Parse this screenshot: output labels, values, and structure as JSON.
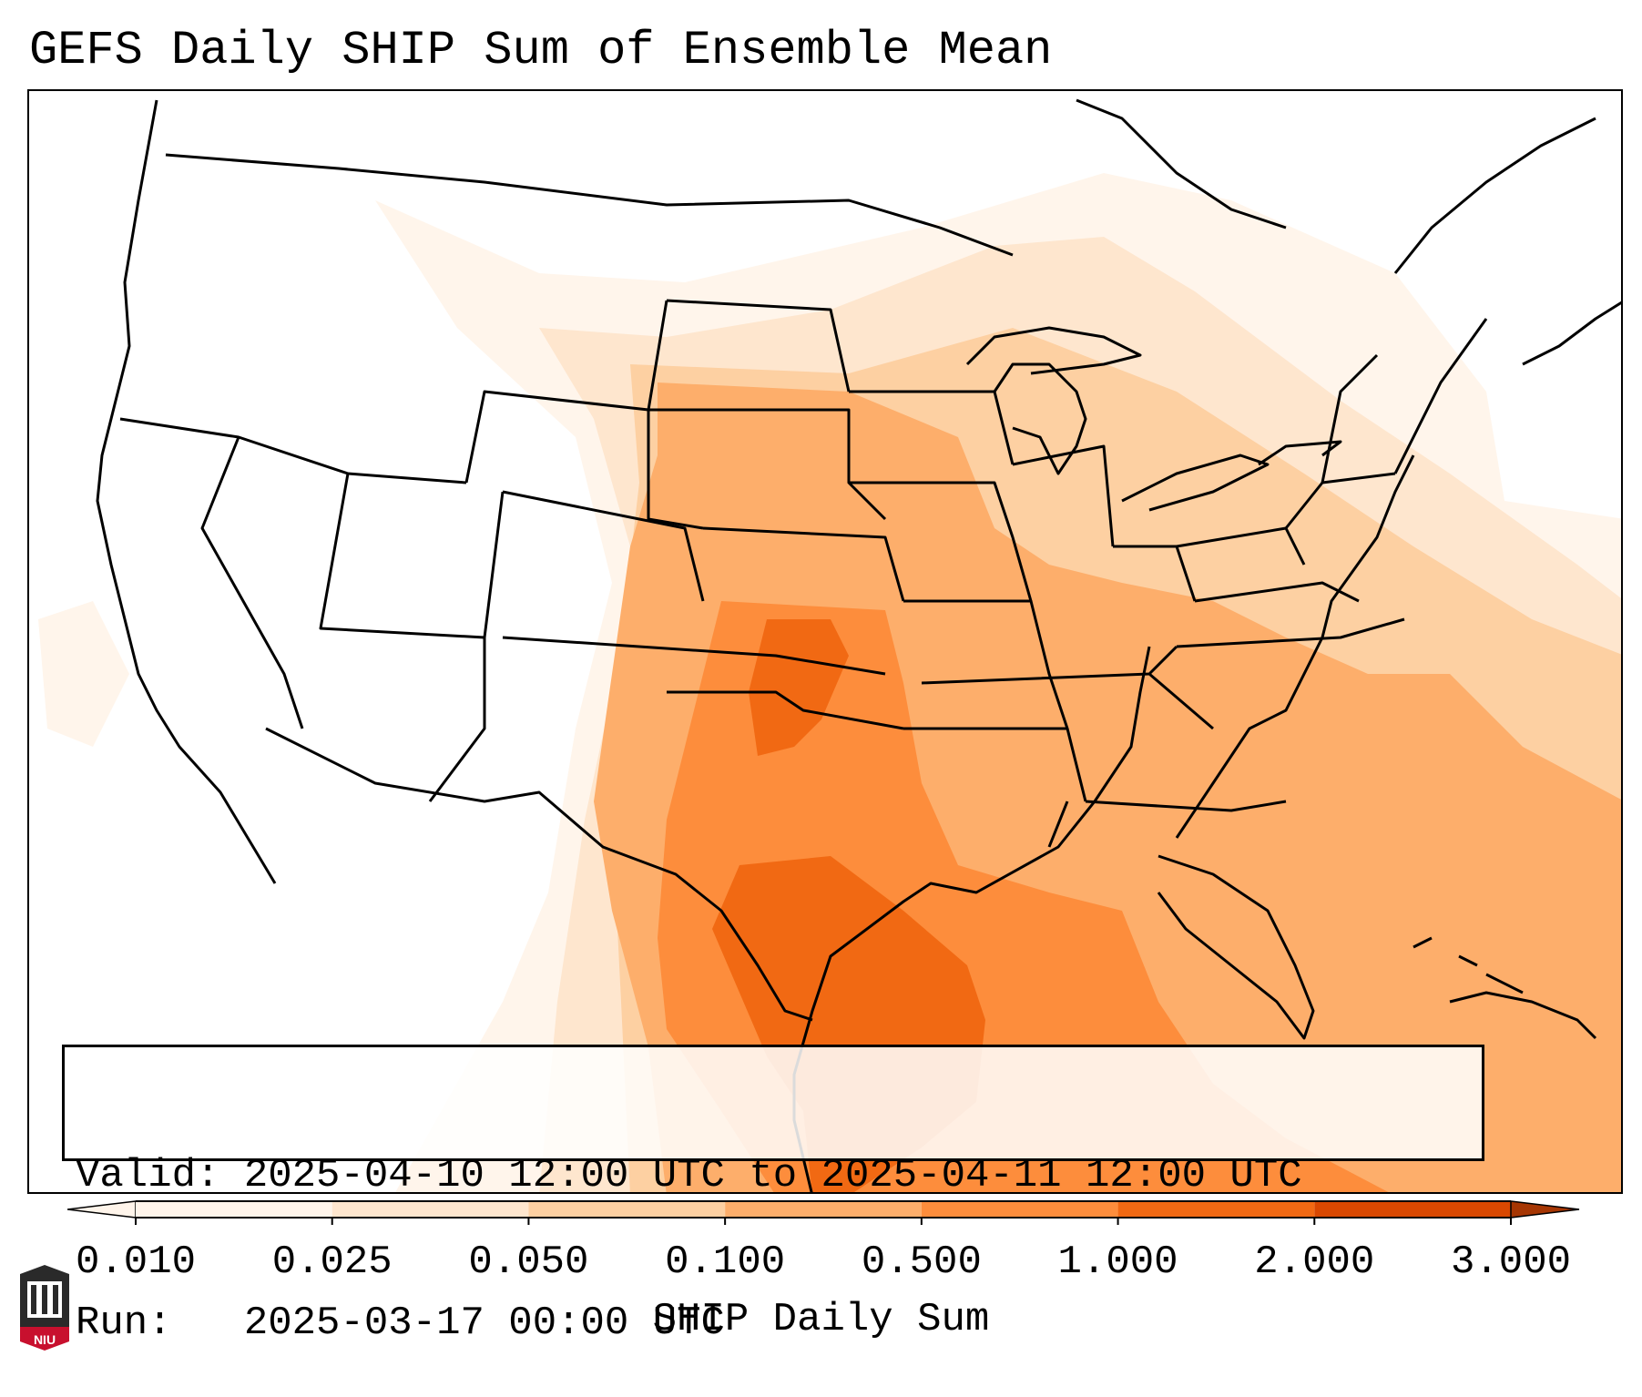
{
  "title": "GEFS Daily SHIP Sum of Ensemble Mean",
  "info": {
    "valid_label": "Valid:",
    "valid_value": "2025-04-10 12:00 UTC to 2025-04-11 12:00 UTC",
    "run_label": "Run:",
    "run_value": "2025-03-17 00:00 UTC"
  },
  "colorbar": {
    "label": "SHIP Daily Sum",
    "ticks": [
      "0.010",
      "0.025",
      "0.050",
      "0.100",
      "0.500",
      "1.000",
      "2.000",
      "3.000"
    ],
    "colors": [
      "#fff5eb",
      "#fee6ce",
      "#fdd0a2",
      "#fdae6b",
      "#fd8d3c",
      "#f16913",
      "#d94801",
      "#a63603"
    ],
    "extend": "both"
  },
  "map": {
    "region": "CONUS",
    "field_colors": {
      "level1": "#fff5eb",
      "level2": "#fee6ce",
      "level3": "#fdd0a2",
      "level4": "#fdae6b",
      "level5": "#fd8d3c",
      "level6": "#f16913"
    }
  },
  "logo": {
    "text": "NIU",
    "color": "#c8102e"
  }
}
